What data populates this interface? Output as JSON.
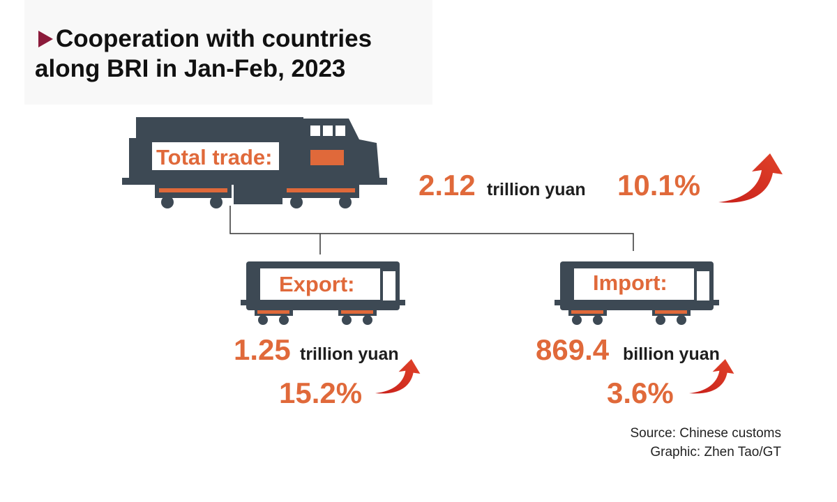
{
  "header": {
    "title_lines": [
      "Cooperation with countries",
      "along BRI in Jan-Feb, 2023"
    ]
  },
  "total": {
    "label": "Total trade:",
    "value": "2.12",
    "unit": "trillion yuan",
    "change": "10.1%"
  },
  "export": {
    "label": "Export:",
    "value": "1.25",
    "unit": "trillion yuan",
    "change": "15.2%"
  },
  "import": {
    "label": "Import:",
    "value": "869.4",
    "unit": "billion yuan",
    "change": "3.6%"
  },
  "footer": {
    "source": "Source: Chinese customs",
    "credit": "Graphic: Zhen Tao/GT"
  }
}
